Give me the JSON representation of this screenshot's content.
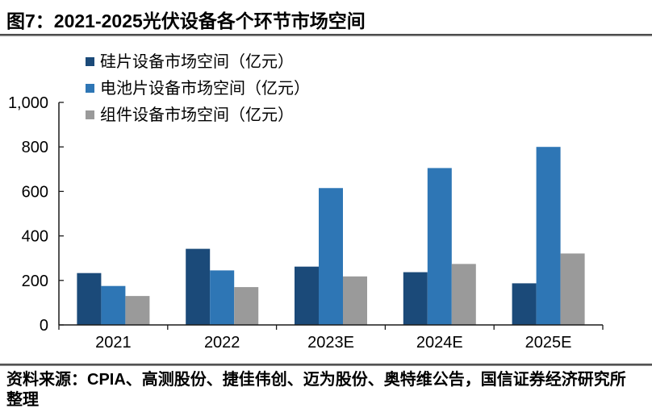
{
  "report": {
    "title": "图7：2021-2025光伏设备各个环节市场空间",
    "source": "资料来源：CPIA、高测股份、捷佳伟创、迈为股份、奥特维公告，国信证券经济研究所整理"
  },
  "chart_data": {
    "type": "bar",
    "title": "2021-2025光伏设备各个环节市场空间",
    "categories": [
      "2021",
      "2022",
      "2023E",
      "2024E",
      "2025E"
    ],
    "series": [
      {
        "name": "硅片设备市场空间（亿元）",
        "color": "#1B4A79",
        "values": [
          233,
          342,
          262,
          237,
          187
        ]
      },
      {
        "name": "电池片设备市场空间（亿元）",
        "color": "#2E76B5",
        "values": [
          175,
          245,
          615,
          705,
          800
        ]
      },
      {
        "name": "组件设备市场空间（亿元）",
        "color": "#9A9A9A",
        "values": [
          130,
          170,
          218,
          274,
          321
        ]
      }
    ],
    "xlabel": "",
    "ylabel": "",
    "ylim": [
      0,
      1000
    ],
    "yticks": [
      {
        "value": 0,
        "label": "0"
      },
      {
        "value": 200,
        "label": "200"
      },
      {
        "value": 400,
        "label": "400"
      },
      {
        "value": 600,
        "label": "600"
      },
      {
        "value": 800,
        "label": "800"
      },
      {
        "value": 1000,
        "label": "1,000"
      }
    ],
    "grid": false,
    "legend_position": "top"
  }
}
